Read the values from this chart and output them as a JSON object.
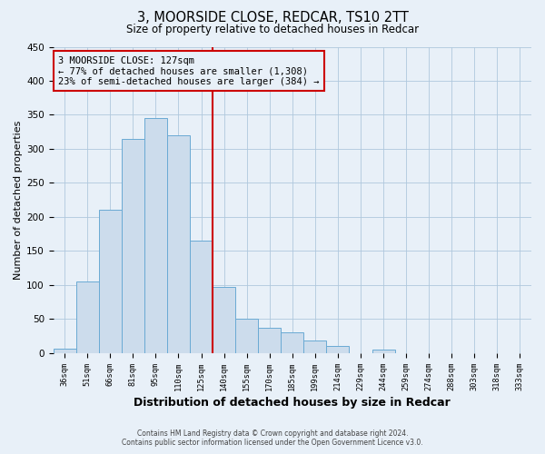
{
  "title": "3, MOORSIDE CLOSE, REDCAR, TS10 2TT",
  "subtitle": "Size of property relative to detached houses in Redcar",
  "xlabel": "Distribution of detached houses by size in Redcar",
  "ylabel": "Number of detached properties",
  "footer_line1": "Contains HM Land Registry data © Crown copyright and database right 2024.",
  "footer_line2": "Contains public sector information licensed under the Open Government Licence v3.0.",
  "bin_labels": [
    "36sqm",
    "51sqm",
    "66sqm",
    "81sqm",
    "95sqm",
    "110sqm",
    "125sqm",
    "140sqm",
    "155sqm",
    "170sqm",
    "185sqm",
    "199sqm",
    "214sqm",
    "229sqm",
    "244sqm",
    "259sqm",
    "274sqm",
    "288sqm",
    "303sqm",
    "318sqm",
    "333sqm"
  ],
  "bar_heights": [
    7,
    105,
    210,
    315,
    345,
    320,
    165,
    97,
    50,
    37,
    30,
    18,
    10,
    0,
    5,
    0,
    0,
    0,
    0,
    0,
    0
  ],
  "bar_color": "#ccdcec",
  "bar_edge_color": "#6aaad4",
  "ylim": [
    0,
    450
  ],
  "yticks": [
    0,
    50,
    100,
    150,
    200,
    250,
    300,
    350,
    400,
    450
  ],
  "property_label": "3 MOORSIDE CLOSE: 127sqm",
  "annotation_line1": "← 77% of detached houses are smaller (1,308)",
  "annotation_line2": "23% of semi-detached houses are larger (384) →",
  "vline_bin_index": 6,
  "vline_color": "#cc0000",
  "plot_bg_color": "#e8f0f8",
  "fig_bg_color": "#e8f0f8",
  "grid_color": "#afc8dd",
  "title_fontsize": 10.5,
  "subtitle_fontsize": 8.5
}
